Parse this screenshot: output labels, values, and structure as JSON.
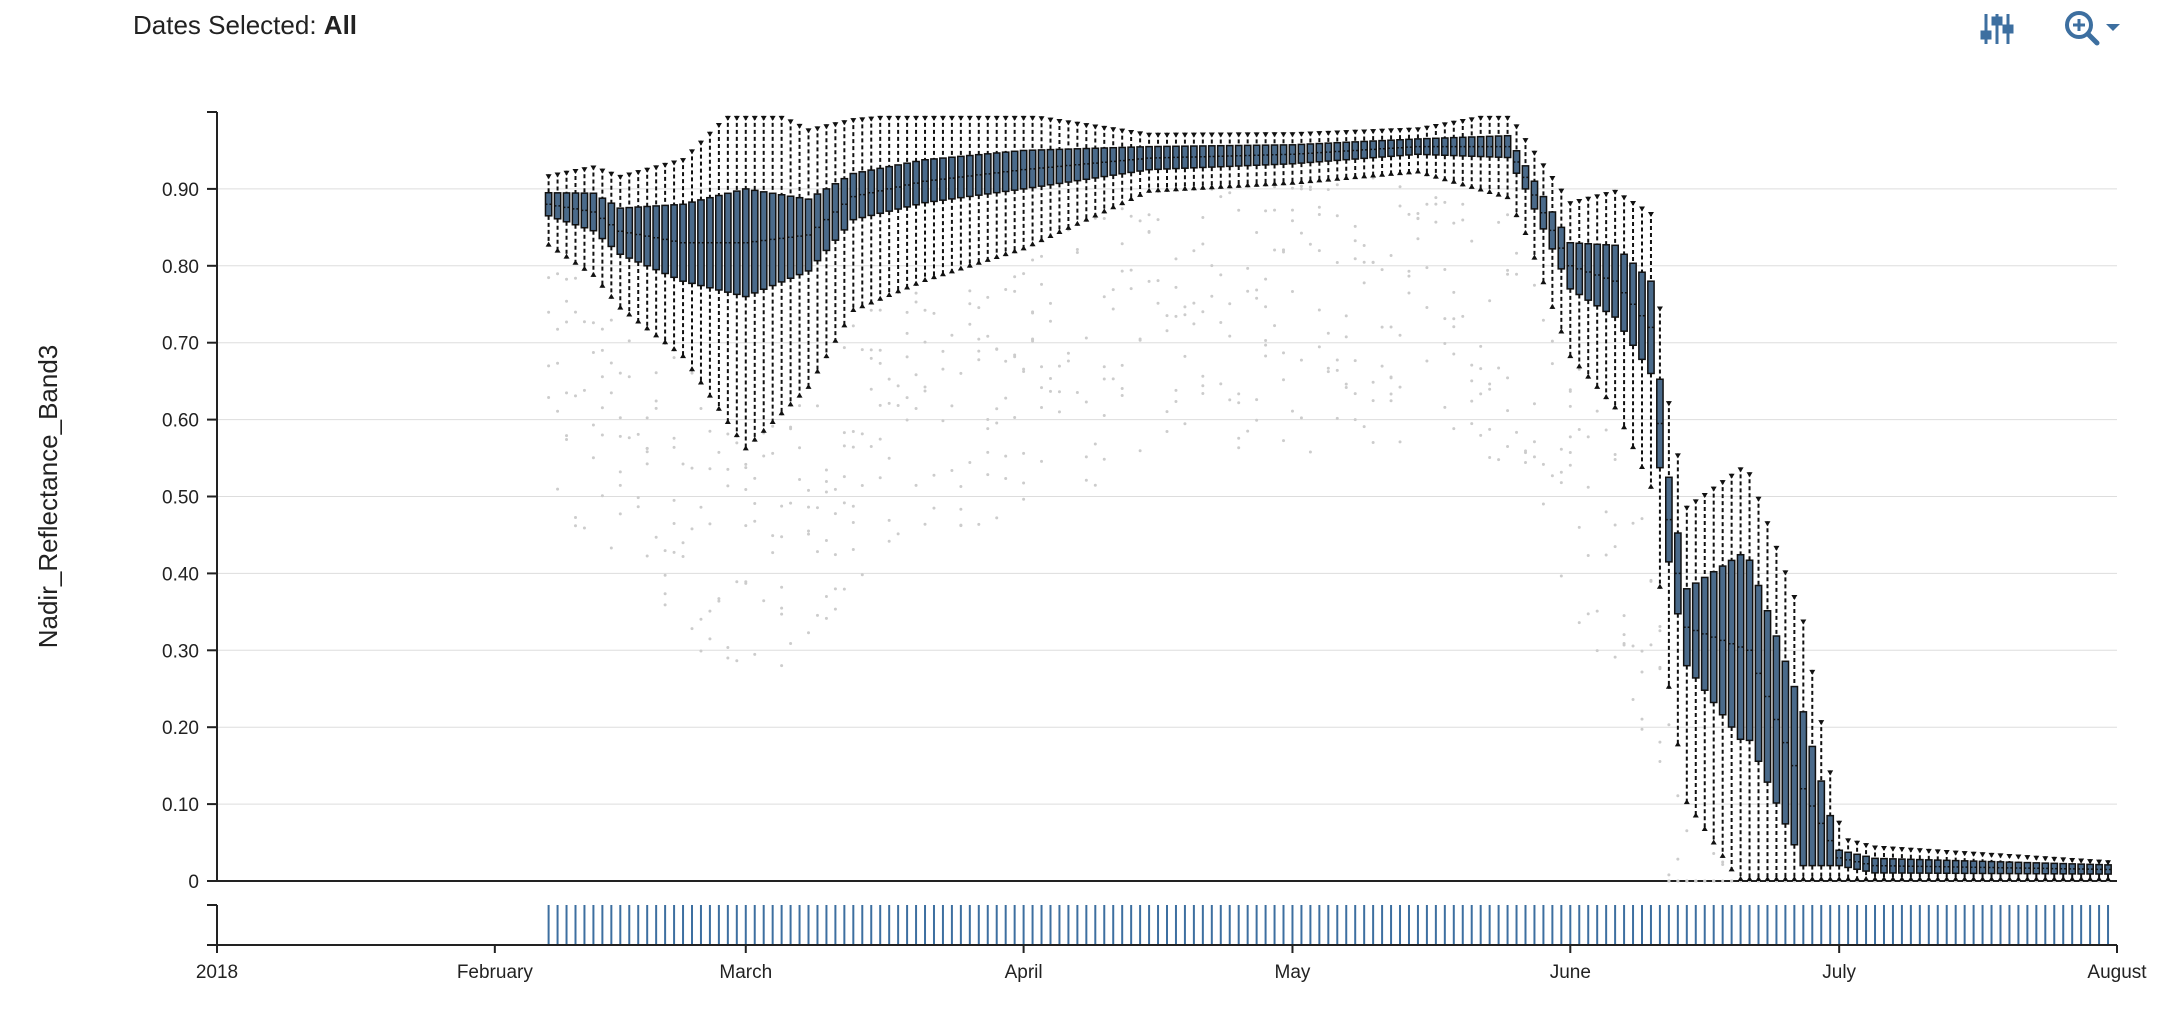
{
  "header": {
    "dates_label": "Dates Selected:",
    "dates_value": "All"
  },
  "toolbar": {
    "filter_icon": "sliders-icon",
    "zoom_icon": "zoom-in-icon",
    "dropdown_icon": "caret-down-icon"
  },
  "colors": {
    "box_fill": "#4a6a8a",
    "box_stroke": "#111111",
    "whisker": "#111111",
    "outlier": "#cccccc",
    "grid": "#dddddd",
    "brush_tick": "#3d6fa0"
  },
  "chart_data": {
    "type": "box",
    "title": "",
    "xlabel": "",
    "ylabel": "Nadir_Reflectance_Band3",
    "ylim": [
      0,
      1.0
    ],
    "xlim": [
      "2018-01-01",
      "2018-08-01"
    ],
    "y_ticks": [
      "0",
      "0.10",
      "0.20",
      "0.30",
      "0.40",
      "0.50",
      "0.60",
      "0.70",
      "0.80",
      "0.90"
    ],
    "x_ticks": [
      "2018",
      "February",
      "March",
      "April",
      "May",
      "June",
      "July",
      "August"
    ],
    "grid": true,
    "series": [
      {
        "date_range": [
          "2018-02-07",
          "2018-07-31"
        ],
        "interval_days": 1,
        "median_profile": [
          [
            "2018-02-07",
            0.88
          ],
          [
            "2018-02-12",
            0.87
          ],
          [
            "2018-02-15",
            0.845
          ],
          [
            "2018-02-22",
            0.83
          ],
          [
            "2018-03-01",
            0.83
          ],
          [
            "2018-03-08",
            0.84
          ],
          [
            "2018-03-13",
            0.89
          ],
          [
            "2018-03-21",
            0.91
          ],
          [
            "2018-04-01",
            0.925
          ],
          [
            "2018-04-15",
            0.94
          ],
          [
            "2018-05-01",
            0.945
          ],
          [
            "2018-05-15",
            0.955
          ],
          [
            "2018-05-25",
            0.955
          ],
          [
            "2018-05-27",
            0.915
          ],
          [
            "2018-06-01",
            0.8
          ],
          [
            "2018-06-06",
            0.78
          ],
          [
            "2018-06-10",
            0.72
          ],
          [
            "2018-06-12",
            0.47
          ],
          [
            "2018-06-14",
            0.33
          ],
          [
            "2018-06-21",
            0.3
          ],
          [
            "2018-06-27",
            0.12
          ],
          [
            "2018-07-01",
            0.03
          ],
          [
            "2018-07-05",
            0.02
          ],
          [
            "2018-07-31",
            0.015
          ]
        ],
        "box_half_width_profile": [
          [
            "2018-02-07",
            0.015
          ],
          [
            "2018-02-15",
            0.03
          ],
          [
            "2018-02-22",
            0.05
          ],
          [
            "2018-03-01",
            0.07
          ],
          [
            "2018-03-13",
            0.03
          ],
          [
            "2018-04-01",
            0.025
          ],
          [
            "2018-04-15",
            0.015
          ],
          [
            "2018-05-15",
            0.01
          ],
          [
            "2018-05-27",
            0.015
          ],
          [
            "2018-06-01",
            0.03
          ],
          [
            "2018-06-10",
            0.06
          ],
          [
            "2018-06-14",
            0.05
          ],
          [
            "2018-06-20",
            0.12
          ],
          [
            "2018-06-27",
            0.1
          ],
          [
            "2018-07-01",
            0.01
          ],
          [
            "2018-07-31",
            0.006
          ]
        ],
        "whisker_spread_profile": [
          [
            "2018-02-07",
            0.04
          ],
          [
            "2018-02-22",
            0.1
          ],
          [
            "2018-03-01",
            0.2
          ],
          [
            "2018-03-13",
            0.12
          ],
          [
            "2018-04-01",
            0.08
          ],
          [
            "2018-04-15",
            0.03
          ],
          [
            "2018-05-15",
            0.025
          ],
          [
            "2018-05-27",
            0.06
          ],
          [
            "2018-06-06",
            0.12
          ],
          [
            "2018-06-14",
            0.18
          ],
          [
            "2018-06-27",
            0.2
          ],
          [
            "2018-07-02",
            0.03
          ],
          [
            "2018-07-31",
            0.01
          ]
        ]
      }
    ]
  }
}
